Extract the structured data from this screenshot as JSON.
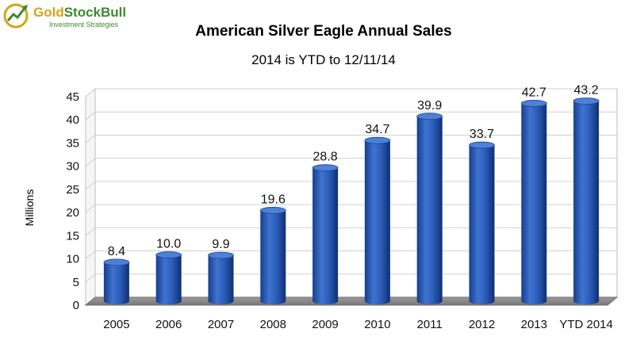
{
  "logo": {
    "brand_part1": "Gold",
    "brand_part2": "StockBull",
    "tagline": "Investment Strategies",
    "color_gold": "#d8a21a",
    "color_green": "#3d8b2f"
  },
  "chart_data": {
    "type": "bar",
    "title": "American Silver Eagle Annual Sales",
    "subtitle": "2014 is YTD to 12/11/14",
    "xlabel": "",
    "ylabel": "Millions",
    "categories": [
      "2005",
      "2006",
      "2007",
      "2008",
      "2009",
      "2010",
      "2011",
      "2012",
      "2013",
      "YTD 2014"
    ],
    "values": [
      8.4,
      10.0,
      9.9,
      19.6,
      28.8,
      34.7,
      39.9,
      33.7,
      42.7,
      43.2
    ],
    "data_labels": [
      "8.4",
      "10.0",
      "9.9",
      "19.6",
      "28.8",
      "34.7",
      "39.9",
      "33.7",
      "42.7",
      "43.2"
    ],
    "ylim": [
      0,
      45
    ],
    "yticks": [
      "0",
      "5",
      "10",
      "15",
      "20",
      "25",
      "30",
      "35",
      "40",
      "45"
    ],
    "grid": true,
    "legend": "none",
    "bar_color": "#1f4fa8",
    "floor_color": "#8a8a8a"
  }
}
